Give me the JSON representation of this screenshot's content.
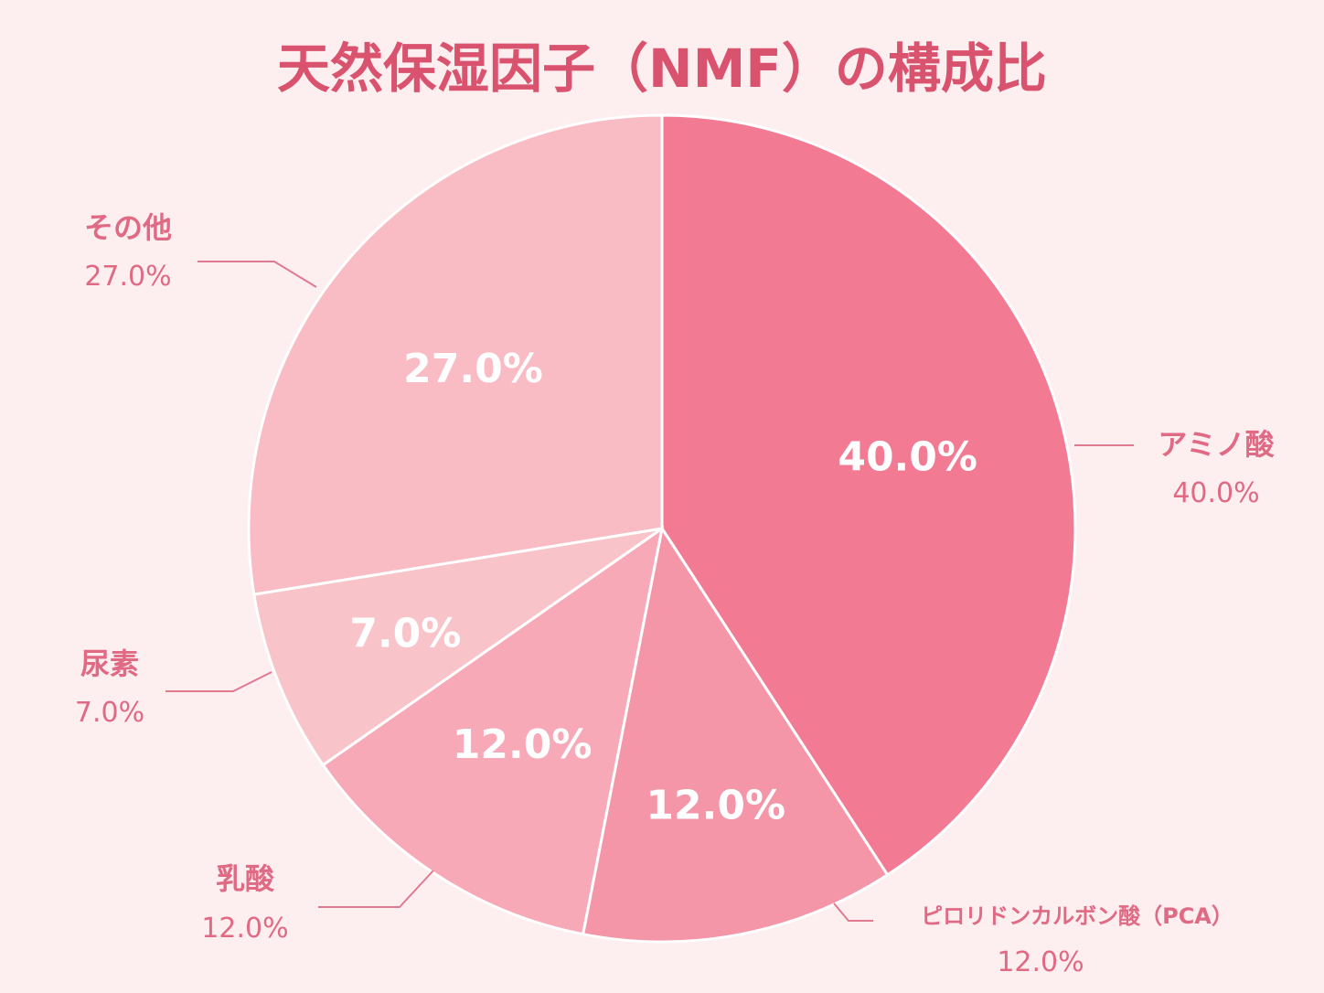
{
  "chart_data": {
    "type": "pie",
    "title": "天然保湿因子（NMF）の構成比",
    "categories": [
      "アミノ酸",
      "ピロリドンカルボン酸（PCA）",
      "乳酸",
      "尿素",
      "その他"
    ],
    "values": [
      40.0,
      12.0,
      12.0,
      7.0,
      27.0
    ],
    "value_labels": [
      "40.0%",
      "12.0%",
      "12.0%",
      "7.0%",
      "27.0%"
    ],
    "start": "12 o'clock, clockwise",
    "colors": [
      "#f27b93",
      "#f496a8",
      "#f7a9b7",
      "#f9c4c9",
      "#f9bcc5"
    ]
  }
}
